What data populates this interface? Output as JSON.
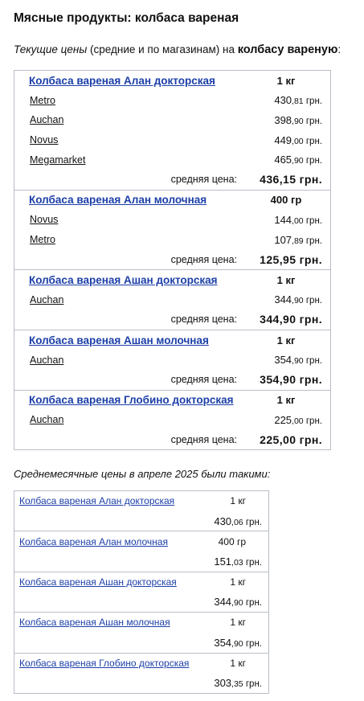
{
  "page": {
    "title": "Мясные продукты: колбаса вареная",
    "intro": {
      "italic": "Текущие цены",
      "normal": " (средние и по магазинам) на ",
      "bold": "колбасу вареную",
      "end": ":"
    }
  },
  "avg_label": "средняя цена:",
  "products": [
    {
      "name": "Колбаса вареная Алан докторская",
      "weight": "1 кг",
      "stores": [
        {
          "store": "Metro",
          "int": "430",
          "kop": ",81",
          "cur": " грн."
        },
        {
          "store": "Auchan",
          "int": "398",
          "kop": ",90",
          "cur": " грн."
        },
        {
          "store": "Novus",
          "int": "449",
          "kop": ",00",
          "cur": " грн."
        },
        {
          "store": "Megamarket",
          "int": "465",
          "kop": ",90",
          "cur": " грн."
        }
      ],
      "avg": "436,15 грн."
    },
    {
      "name": "Колбаса вареная Алан молочная",
      "weight": "400 гр",
      "stores": [
        {
          "store": "Novus",
          "int": "144",
          "kop": ",00",
          "cur": " грн."
        },
        {
          "store": "Metro",
          "int": "107",
          "kop": ",89",
          "cur": " грн."
        }
      ],
      "avg": "125,95 грн."
    },
    {
      "name": "Колбаса вареная Ашан докторская",
      "weight": "1 кг",
      "stores": [
        {
          "store": "Auchan",
          "int": "344",
          "kop": ",90",
          "cur": " грн."
        }
      ],
      "avg": "344,90 грн."
    },
    {
      "name": "Колбаса вареная Ашан молочная",
      "weight": "1 кг",
      "stores": [
        {
          "store": "Auchan",
          "int": "354",
          "kop": ",90",
          "cur": " грн."
        }
      ],
      "avg": "354,90 грн."
    },
    {
      "name": "Колбаса вареная Глобино докторская",
      "weight": "1 кг",
      "stores": [
        {
          "store": "Auchan",
          "int": "225",
          "kop": ",00",
          "cur": " грн."
        }
      ],
      "avg": "225,00 грн."
    }
  ],
  "monthly_note": "Среднемесячные цены в апреле 2025 были такими:",
  "monthly": [
    {
      "name": "Колбаса вареная Алан докторская",
      "weight": "1 кг",
      "int": "430",
      "kop": ",06",
      "cur": " грн."
    },
    {
      "name": "Колбаса вареная Алан молочная",
      "weight": "400 гр",
      "int": "151",
      "kop": ",03",
      "cur": " грн."
    },
    {
      "name": "Колбаса вареная Ашан докторская",
      "weight": "1 кг",
      "int": "344",
      "kop": ",90",
      "cur": " грн."
    },
    {
      "name": "Колбаса вареная Ашан молочная",
      "weight": "1 кг",
      "int": "354",
      "kop": ",90",
      "cur": " грн."
    },
    {
      "name": "Колбаса вареная Глобино докторская",
      "weight": "1 кг",
      "int": "303",
      "kop": ",35",
      "cur": " грн."
    }
  ]
}
